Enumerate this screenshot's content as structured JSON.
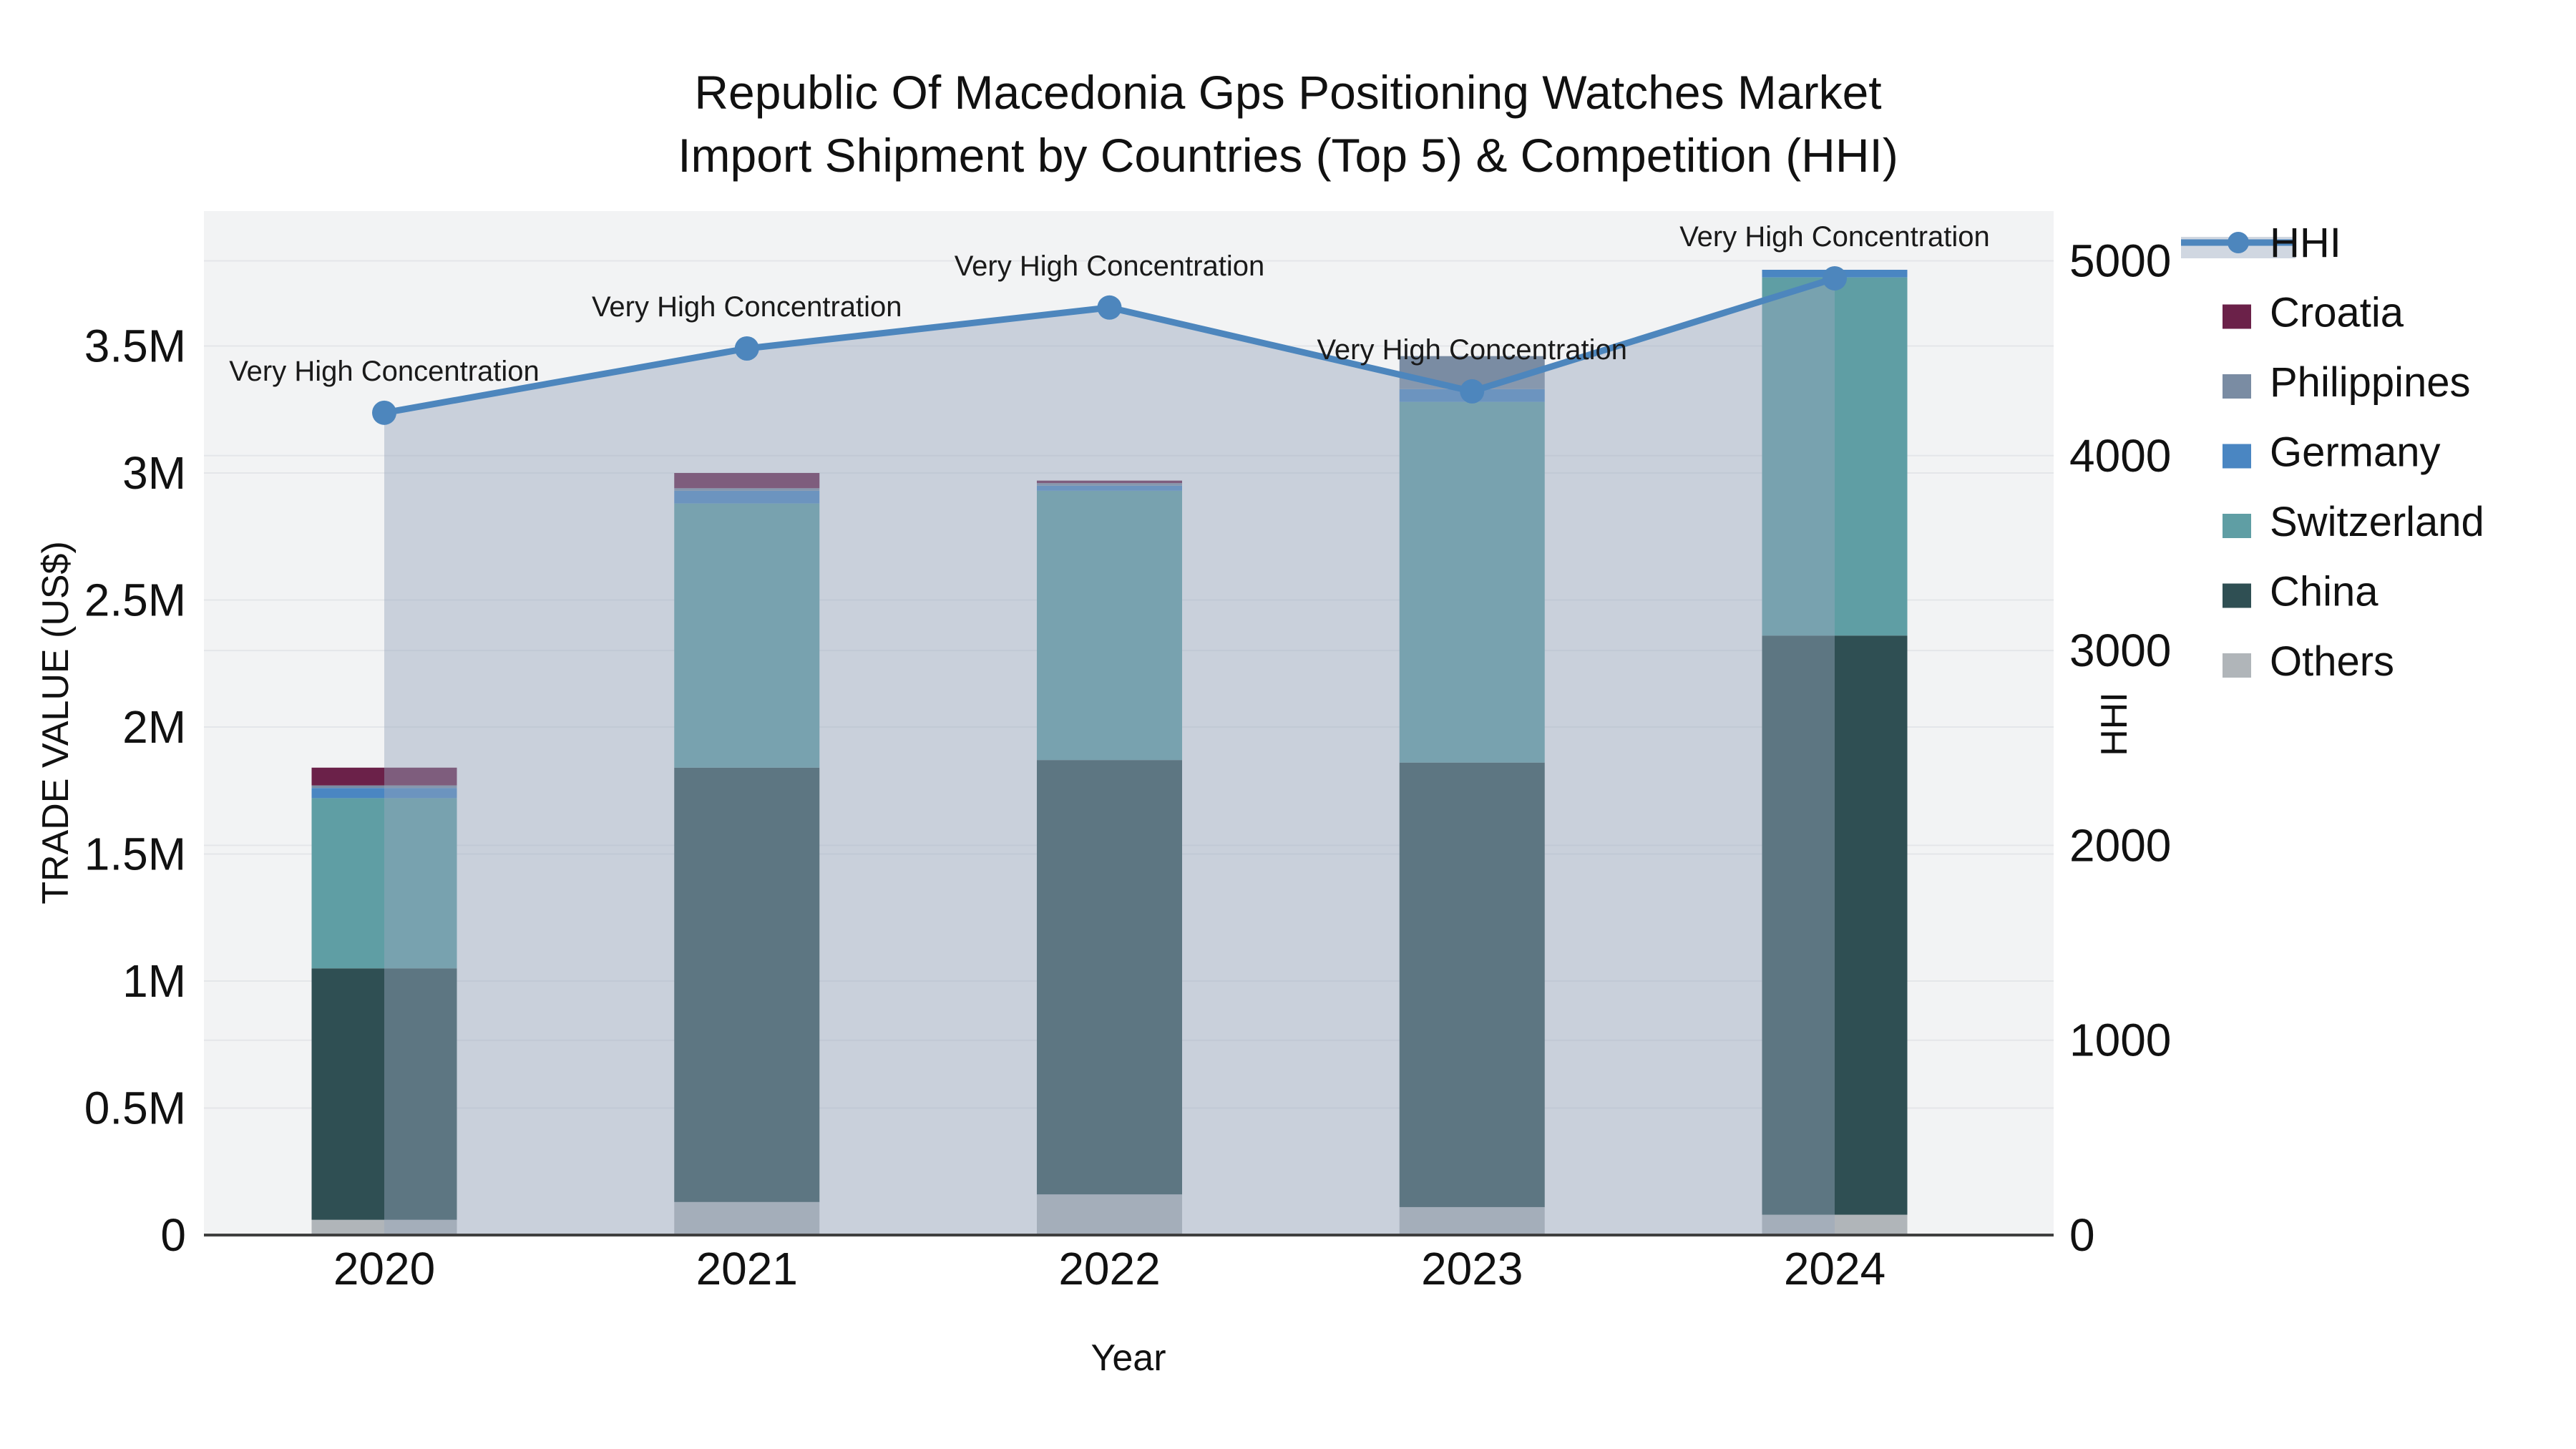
{
  "title": {
    "line1": "Republic Of Macedonia Gps Positioning Watches Market",
    "line2": "Import Shipment by Countries (Top 5) & Competition (HHI)"
  },
  "chart_data": {
    "type": "combo-stacked-bar-plus-line",
    "categories": [
      "2020",
      "2021",
      "2022",
      "2023",
      "2024"
    ],
    "bar_unit": "million US$",
    "series": [
      {
        "name": "Others",
        "type": "bar",
        "color": "#b0b5b9",
        "values": [
          0.06,
          0.13,
          0.16,
          0.11,
          0.08
        ]
      },
      {
        "name": "China",
        "type": "bar",
        "color": "#2f4f53",
        "values": [
          0.99,
          1.71,
          1.71,
          1.75,
          2.28
        ]
      },
      {
        "name": "Switzerland",
        "type": "bar",
        "color": "#5f9ea4",
        "values": [
          0.67,
          1.04,
          1.06,
          1.42,
          1.41
        ]
      },
      {
        "name": "Germany",
        "type": "bar",
        "color": "#4a86c2",
        "values": [
          0.04,
          0.05,
          0.02,
          0.05,
          0.03
        ]
      },
      {
        "name": "Philippines",
        "type": "bar",
        "color": "#7a8ca3",
        "values": [
          0.01,
          0.01,
          0.01,
          0.13,
          0.0
        ]
      },
      {
        "name": "Croatia",
        "type": "bar",
        "color": "#6b2149",
        "values": [
          0.07,
          0.06,
          0.01,
          0.0,
          0.0
        ]
      }
    ],
    "bar_totals": [
      1.84,
      3.0,
      2.97,
      3.46,
      3.8
    ],
    "line_series": {
      "name": "HHI",
      "color": "#4d86bd",
      "area_fill": "rgba(151,166,189,0.45)",
      "values": [
        4220,
        4550,
        4760,
        4330,
        4910
      ]
    },
    "annotations": [
      {
        "x": "2020",
        "text": "Very High Concentration"
      },
      {
        "x": "2021",
        "text": "Very High Concentration"
      },
      {
        "x": "2022",
        "text": "Very High Concentration"
      },
      {
        "x": "2023",
        "text": "Very High Concentration"
      },
      {
        "x": "2024",
        "text": "Very High Concentration"
      }
    ],
    "left_axis": {
      "title": "TRADE VALUE (US$)",
      "tick_labels": [
        "0",
        "0.5M",
        "1M",
        "1.5M",
        "2M",
        "2.5M",
        "3M",
        "3.5M"
      ],
      "tick_values": [
        0,
        0.5,
        1,
        1.5,
        2,
        2.5,
        3,
        3.5
      ],
      "range": [
        0,
        3.5
      ]
    },
    "right_axis": {
      "title": "HHI",
      "tick_labels": [
        "0",
        "1000",
        "2000",
        "3000",
        "4000",
        "5000"
      ],
      "tick_values": [
        0,
        1000,
        2000,
        3000,
        4000,
        5000
      ],
      "range": [
        0,
        5000
      ]
    },
    "x_axis": {
      "title": "Year"
    },
    "grid": true,
    "legend_position": "right",
    "legend": [
      {
        "label": "HHI",
        "kind": "line"
      },
      {
        "label": "Croatia",
        "kind": "swatch",
        "color": "#6b2149"
      },
      {
        "label": "Philippines",
        "kind": "swatch",
        "color": "#7a8ca3"
      },
      {
        "label": "Germany",
        "kind": "swatch",
        "color": "#4a86c2"
      },
      {
        "label": "Switzerland",
        "kind": "swatch",
        "color": "#5f9ea4"
      },
      {
        "label": "China",
        "kind": "swatch",
        "color": "#2f4f53"
      },
      {
        "label": "Others",
        "kind": "swatch",
        "color": "#b0b5b9"
      }
    ]
  },
  "colors": {
    "plot_bg": "#f2f3f4",
    "grid": "#e4e6e9",
    "axis_line": "#3f3f3f",
    "text": "#111111",
    "annotation_text": "#1a1a1a"
  }
}
